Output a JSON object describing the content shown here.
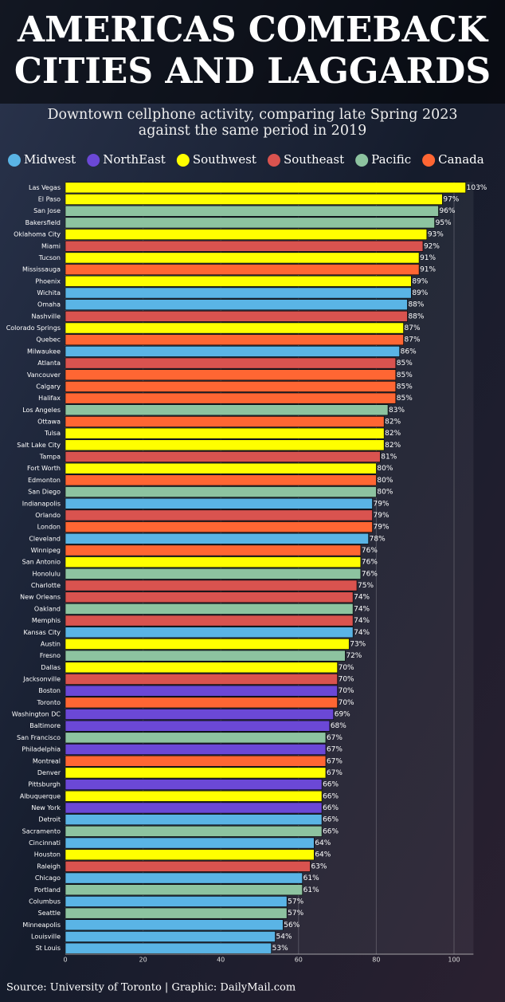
{
  "chart_data": {
    "type": "barh",
    "title": "AMERICAS COMEBACK CITIES AND LAGGARDS",
    "subtitle": "Downtown cellphone activity, comparing late Spring 2023 against the same period in 2019",
    "footer": "Source: University of Toronto  |  Graphic: DailyMail.com",
    "series": [
      {
        "name": "Midwest",
        "color": "#5ab4e5"
      },
      {
        "name": "NorthEast",
        "color": "#6b48d6"
      },
      {
        "name": "Southwest",
        "color": "#ffff00"
      },
      {
        "name": "Southeast",
        "color": "#d9534f"
      },
      {
        "name": "Pacific",
        "color": "#8dc3a0"
      },
      {
        "name": "Canada",
        "color": "#ff6633"
      }
    ],
    "categories": [
      "Las Vegas",
      "El Paso",
      "San Jose",
      "Bakersfield",
      "Oklahoma City",
      "Miami",
      "Tucson",
      "Mississauga",
      "Phoenix",
      "Wichita",
      "Omaha",
      "Nashville",
      "Colorado Springs",
      "Quebec",
      "Milwaukee",
      "Atlanta",
      "Vancouver",
      "Calgary",
      "Halifax",
      "Los Angeles",
      "Ottawa",
      "Tulsa",
      "Salt Lake City",
      "Tampa",
      "Fort Worth",
      "Edmonton",
      "San Diego",
      "Indianapolis",
      "Orlando",
      "London",
      "Cleveland",
      "Winnipeg",
      "San Antonio",
      "Honolulu",
      "Charlotte",
      "New Orleans",
      "Oakland",
      "Memphis",
      "Kansas City",
      "Austin",
      "Fresno",
      "Dallas",
      "Jacksonville",
      "Boston",
      "Toronto",
      "Washington DC",
      "Baltimore",
      "San Francisco",
      "Philadelphia",
      "Montreal",
      "Denver",
      "Pittsburgh",
      "Albuquerque",
      "New York",
      "Detroit",
      "Sacramento",
      "Cincinnati",
      "Houston",
      "Raleigh",
      "Chicago",
      "Portland",
      "Columbus",
      "Seattle",
      "Minneapolis",
      "Louisville",
      "St Louis"
    ],
    "values": [
      103,
      97,
      96,
      95,
      93,
      92,
      91,
      91,
      89,
      89,
      88,
      88,
      87,
      87,
      86,
      85,
      85,
      85,
      85,
      83,
      82,
      82,
      82,
      81,
      80,
      80,
      80,
      79,
      79,
      79,
      78,
      76,
      76,
      76,
      75,
      74,
      74,
      74,
      74,
      73,
      72,
      70,
      70,
      70,
      70,
      69,
      68,
      67,
      67,
      67,
      67,
      66,
      66,
      66,
      66,
      66,
      64,
      64,
      63,
      61,
      61,
      57,
      57,
      56,
      54,
      53
    ],
    "value_labels": [
      "103%",
      "97%",
      "96%",
      "95%",
      "93%",
      "92%",
      "91%",
      "91%",
      "89%",
      "89%",
      "88%",
      "88%",
      "87%",
      "87%",
      "86%",
      "85%",
      "85%",
      "85%",
      "85%",
      "83%",
      "82%",
      "82%",
      "82%",
      "81%",
      "80%",
      "80%",
      "80%",
      "79%",
      "79%",
      "79%",
      "78%",
      "76%",
      "76%",
      "76%",
      "75%",
      "74%",
      "74%",
      "74%",
      "74%",
      "73%",
      "72%",
      "70%",
      "70%",
      "70%",
      "70%",
      "69%",
      "68%",
      "67%",
      "67%",
      "67%",
      "67%",
      "66%",
      "66%",
      "66%",
      "66%",
      "66%",
      "64%",
      "64%",
      "63%",
      "61%",
      "61%",
      "57%",
      "57%",
      "56%",
      "54%",
      "53%"
    ],
    "colors": [
      "#ffff00",
      "#ffff00",
      "#8dc3a0",
      "#8dc3a0",
      "#ffff00",
      "#d9534f",
      "#ffff00",
      "#ff6633",
      "#ffff00",
      "#5ab4e5",
      "#5ab4e5",
      "#d9534f",
      "#ffff00",
      "#ff6633",
      "#5ab4e5",
      "#d9534f",
      "#ff6633",
      "#ff6633",
      "#ff6633",
      "#8dc3a0",
      "#ff6633",
      "#ffff00",
      "#ffff00",
      "#d9534f",
      "#ffff00",
      "#ff6633",
      "#8dc3a0",
      "#5ab4e5",
      "#d9534f",
      "#ff6633",
      "#5ab4e5",
      "#ff6633",
      "#ffff00",
      "#8dc3a0",
      "#d9534f",
      "#d9534f",
      "#8dc3a0",
      "#d9534f",
      "#5ab4e5",
      "#ffff00",
      "#8dc3a0",
      "#ffff00",
      "#d9534f",
      "#6b48d6",
      "#ff6633",
      "#6b48d6",
      "#6b48d6",
      "#8dc3a0",
      "#6b48d6",
      "#ff6633",
      "#ffff00",
      "#6b48d6",
      "#ffff00",
      "#6b48d6",
      "#5ab4e5",
      "#8dc3a0",
      "#5ab4e5",
      "#ffff00",
      "#d9534f",
      "#5ab4e5",
      "#8dc3a0",
      "#5ab4e5",
      "#8dc3a0",
      "#5ab4e5",
      "#5ab4e5",
      "#5ab4e5"
    ],
    "xlim": [
      0,
      105
    ],
    "xticks": [
      0,
      20,
      40,
      60,
      80,
      100
    ],
    "grid": true
  }
}
